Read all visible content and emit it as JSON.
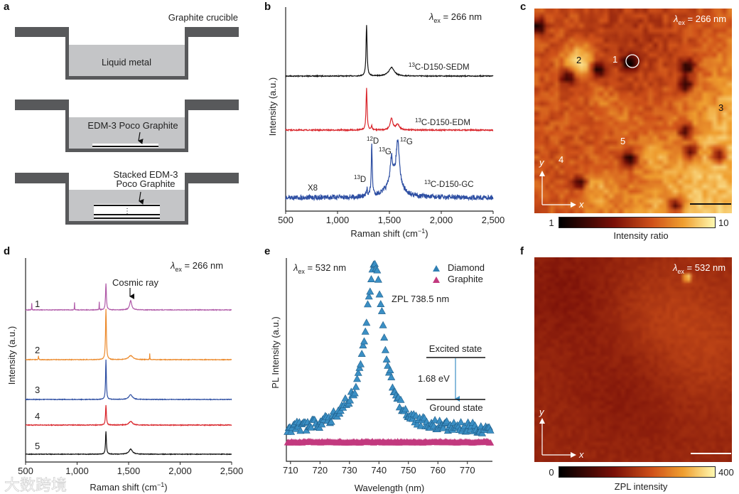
{
  "panel_labels": {
    "a": "a",
    "b": "b",
    "c": "c",
    "d": "d",
    "e": "e",
    "f": "f"
  },
  "panel_a": {
    "crucible_label": "Graphite crucible",
    "liquid_label": "Liquid metal",
    "plate_label": "EDM-3 Poco Graphite",
    "stacked_label_line1": "Stacked EDM-3",
    "stacked_label_line2": "Poco Graphite",
    "stack_dots": "⋮",
    "colors": {
      "crucible": "#58595b",
      "liquid": "#c4c5c7"
    }
  },
  "excitation": {
    "symbol": "λ",
    "sub": "ex",
    "v266": " = 266 nm",
    "v532": " = 532 nm"
  },
  "chart_data": [
    {
      "id": "b",
      "type": "line",
      "xlabel_main": "Raman shift (cm",
      "xlabel_sup": "−1",
      "xlabel_end": ")",
      "ylabel": "Intensity (a.u.)",
      "xlim": [
        500,
        2500
      ],
      "xticks": [
        "500",
        "1,000",
        "1,500",
        "2,000",
        "2,500"
      ],
      "series": [
        {
          "name_sup": "13",
          "name": "C-D150-SEDM",
          "color": "#111111",
          "peaks": [
            {
              "pos": 1280,
              "amp": 1.0,
              "w": 6
            },
            {
              "pos": 1520,
              "amp": 0.17,
              "w": 30
            }
          ]
        },
        {
          "name_sup": "13",
          "name": "C-D150-EDM",
          "color": "#d9252b",
          "peaks": [
            {
              "pos": 1280,
              "amp": 1.0,
              "w": 6
            },
            {
              "pos": 1330,
              "amp": 0.1,
              "w": 5
            },
            {
              "pos": 1520,
              "amp": 0.28,
              "w": 15
            },
            {
              "pos": 1580,
              "amp": 0.13,
              "w": 20
            }
          ]
        },
        {
          "name_sup": "13",
          "name": "C-D150-GC",
          "color": "#2e4fa3",
          "multiplier": "X8",
          "peaks": [
            {
              "pos": 1285,
              "amp": 0.12,
              "w": 5
            },
            {
              "pos": 1330,
              "amp": 0.8,
              "w": 6
            },
            {
              "pos": 1520,
              "amp": 0.42,
              "w": 15
            },
            {
              "pos": 1580,
              "amp": 0.72,
              "w": 20
            },
            {
              "pos": 1540,
              "amp": 0.2,
              "w": 90
            }
          ]
        }
      ],
      "annotations": [
        {
          "sup": "13",
          "text": "D"
        },
        {
          "sup": "12",
          "text": "D"
        },
        {
          "sup": "13",
          "text": "G"
        },
        {
          "sup": "12",
          "text": "G"
        }
      ]
    },
    {
      "id": "d",
      "type": "line",
      "xlabel_main": "Raman shift (cm",
      "xlabel_sup": "−1",
      "xlabel_end": ")",
      "ylabel": "Intensity (a.u.)",
      "xlim": [
        500,
        2500
      ],
      "xticks": [
        "500",
        "1,000",
        "1,500",
        "2,000",
        "2,500"
      ],
      "annotation": "Cosmic ray",
      "series": [
        {
          "name": "1",
          "color": "#b05aa8",
          "peaks": [
            {
              "pos": 1280,
              "amp": 1.0,
              "w": 5
            },
            {
              "pos": 1520,
              "amp": 0.35,
              "w": 12
            },
            {
              "pos": 560,
              "amp": 0.25,
              "w": 1.5
            },
            {
              "pos": 975,
              "amp": 0.28,
              "w": 1.5
            },
            {
              "pos": 1215,
              "amp": 0.3,
              "w": 1.5
            }
          ]
        },
        {
          "name": "2",
          "color": "#ec8a2c",
          "peaks": [
            {
              "pos": 1280,
              "amp": 1.0,
              "w": 5
            },
            {
              "pos": 1520,
              "amp": 0.08,
              "w": 25
            },
            {
              "pos": 625,
              "amp": 0.08,
              "w": 2
            },
            {
              "pos": 1705,
              "amp": 0.12,
              "w": 1.5
            }
          ]
        },
        {
          "name": "3",
          "color": "#2e4fa3",
          "peaks": [
            {
              "pos": 1280,
              "amp": 1.0,
              "w": 4.5
            },
            {
              "pos": 1520,
              "amp": 0.12,
              "w": 20
            }
          ]
        },
        {
          "name": "4",
          "color": "#d9252b",
          "peaks": [
            {
              "pos": 1280,
              "amp": 1.0,
              "w": 5
            },
            {
              "pos": 1520,
              "amp": 0.18,
              "w": 20
            }
          ]
        },
        {
          "name": "5",
          "color": "#111111",
          "peaks": [
            {
              "pos": 1280,
              "amp": 1.0,
              "w": 5
            },
            {
              "pos": 1520,
              "amp": 0.22,
              "w": 20
            }
          ]
        }
      ]
    },
    {
      "id": "e",
      "type": "scatter",
      "xlabel": "Wavelength (nm)",
      "ylabel": "PL Intensity (a.u.)",
      "xlim": [
        708.6,
        778.5
      ],
      "xticks": [
        "710",
        "720",
        "730",
        "740",
        "750",
        "760",
        "770"
      ],
      "series": [
        {
          "name": "Diamond",
          "color": "#3b8fc4",
          "peak_nm": 738.5,
          "fwhm_nm": 7.5,
          "peak_intensity": 1.0,
          "background": 0.07
        },
        {
          "name": "Graphite",
          "color": "#c2397e",
          "background": 0.0
        }
      ],
      "zpl_label": "ZPL 738.5 nm",
      "excited_state": "Excited state",
      "ground_state": "Ground state",
      "energy": "1.68 eV"
    }
  ],
  "map_c": {
    "point_labels": [
      "1",
      "2",
      "3",
      "4",
      "5"
    ],
    "axis_x": "x",
    "axis_y": "y",
    "colorbar_min": "1",
    "colorbar_max": "10",
    "colorbar_label": "Intensity ratio"
  },
  "map_f": {
    "axis_x": "x",
    "axis_y": "y",
    "colorbar_min": "0",
    "colorbar_max": "400",
    "colorbar_label": "ZPL intensity"
  },
  "watermark": "大数跨境"
}
